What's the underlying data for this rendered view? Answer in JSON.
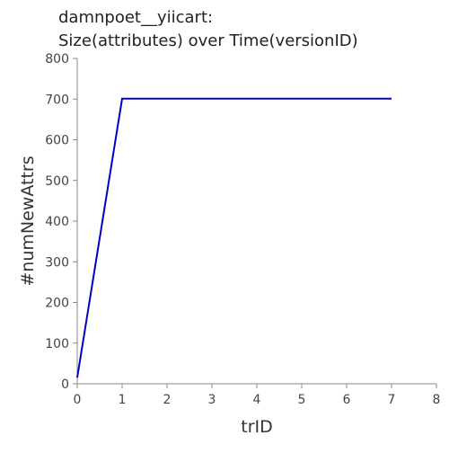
{
  "chart_data": {
    "type": "line",
    "title_lines": [
      "damnpoet__yiicart:",
      "Size(attributes) over Time(versionID)"
    ],
    "xlabel": "trID",
    "ylabel": "#numNewAttrs",
    "xlim": [
      0,
      8
    ],
    "ylim": [
      0,
      800
    ],
    "xticks": [
      0,
      1,
      2,
      3,
      4,
      5,
      6,
      7,
      8
    ],
    "yticks": [
      0,
      100,
      200,
      300,
      400,
      500,
      600,
      700,
      800
    ],
    "grid": false,
    "line_color": "#0000cc",
    "series": [
      {
        "x": [
          0,
          1,
          2,
          3,
          4,
          5,
          6,
          7
        ],
        "y": [
          15,
          701,
          701,
          701,
          701,
          701,
          701,
          701
        ]
      }
    ]
  }
}
